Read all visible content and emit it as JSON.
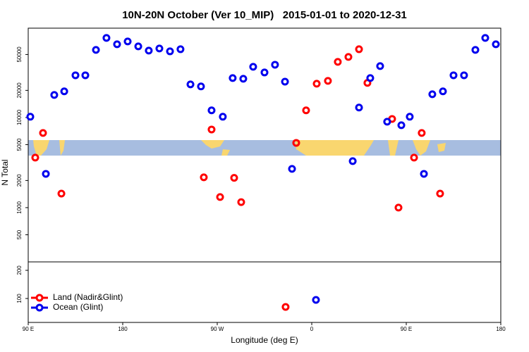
{
  "chart_data": {
    "type": "scatter",
    "title": "10N-20N October (Ver 10_MIP)   2015-01-01 to 2020-12-31",
    "xlabel": "Longitude (deg E)",
    "ylabel": "N Total",
    "xlim": [
      90,
      540
    ],
    "xticks": [
      {
        "value": 90,
        "label": "90 E"
      },
      180,
      {
        "value": 270,
        "label": "90 W"
      },
      {
        "value": 360,
        "label": "0"
      },
      {
        "value": 450,
        "label": "90 E"
      },
      {
        "value": 540,
        "label": "180"
      }
    ],
    "panels": [
      {
        "log_scale": true,
        "ylim": [
          250,
          98000
        ],
        "yticks": [
          500,
          1000,
          2000,
          5000,
          10000,
          20000,
          50000
        ],
        "series": [
          {
            "name": "Land (Nadir&Glint)",
            "color": "#ff0000",
            "x": [
              96.7,
              104.1,
              121.6,
              257.2,
              264.6,
              272.7,
              286.1,
              292.8,
              345.2,
              354.6,
              364.7,
              375.4,
              384.8,
              394.9,
              405,
              413,
              436.5,
              442.6,
              457.4,
              464.7,
              482.2
            ],
            "values": [
              3590,
              6730,
              1430,
              2170,
              7360,
              1310,
              2140,
              1150,
              5230,
              12000,
              23700,
              25500,
              41400,
              47000,
              57200,
              24200,
              9640,
              1000,
              3590,
              6730,
              1430
            ]
          },
          {
            "name": "Ocean (Glint)",
            "color": "#0000ee",
            "x": [
              92,
              106.8,
              114.8,
              124.3,
              135,
              144.4,
              154.5,
              164.5,
              174.6,
              184.7,
              194.8,
              204.8,
              214.9,
              225,
              235,
              244.5,
              254.5,
              264.6,
              275.3,
              284.7,
              294.8,
              304.2,
              315,
              325,
              334.5,
              341.2,
              399,
              405,
              415.7,
              425.1,
              431.8,
              445.3,
              453.3,
              466.8,
              474.8,
              484.9,
              495,
              505,
              515.8,
              525.2,
              535.3
            ],
            "values": [
              10200,
              2370,
              17800,
              19500,
              29400,
              29400,
              56200,
              76300,
              64900,
              69800,
              61500,
              55200,
              58300,
              54200,
              57200,
              23300,
              22100,
              12000,
              10200,
              27400,
              26900,
              36500,
              31600,
              38500,
              25000,
              2690,
              3280,
              12900,
              27400,
              37200,
              8980,
              8210,
              10200,
              2370,
              18100,
              19500,
              29400,
              29400,
              56200,
              76300,
              64900
            ]
          }
        ]
      },
      {
        "log_scale": false,
        "ylim": [
          15,
          230
        ],
        "yticks": [
          100,
          200
        ],
        "series": [
          {
            "color": "#ff0000",
            "x": [
              335.1
            ],
            "values": [
              70
            ]
          },
          {
            "color": "#0000ee",
            "x": [
              364
            ],
            "values": [
              95
            ]
          }
        ]
      }
    ]
  }
}
